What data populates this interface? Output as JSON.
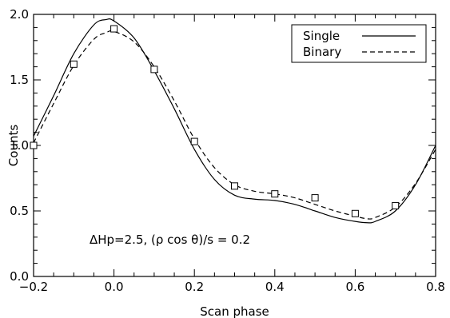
{
  "chart_data": {
    "type": "line",
    "title": "",
    "xlabel": "Scan phase",
    "ylabel": "Counts",
    "xlim": [
      -0.2,
      0.8
    ],
    "ylim": [
      0.0,
      2.0
    ],
    "xticks": [
      -0.2,
      0.0,
      0.2,
      0.4,
      0.6,
      0.8
    ],
    "xtick_labels": [
      "−0.2",
      "0.0",
      "0.2",
      "0.4",
      "0.6",
      "0.8"
    ],
    "yticks": [
      0.0,
      0.5,
      1.0,
      1.5,
      2.0
    ],
    "ytick_labels": [
      "0.0",
      "0.5",
      "1.0",
      "1.5",
      "2.0"
    ],
    "grid": false,
    "legend_position": "top-right",
    "series": [
      {
        "name": "Single",
        "style": "solid",
        "x": [
          -0.2,
          -0.15,
          -0.1,
          -0.05,
          -0.02,
          0.0,
          0.05,
          0.1,
          0.15,
          0.2,
          0.25,
          0.3,
          0.35,
          0.4,
          0.45,
          0.5,
          0.55,
          0.6,
          0.63,
          0.65,
          0.7,
          0.75,
          0.8
        ],
        "y": [
          1.07,
          1.38,
          1.7,
          1.92,
          1.96,
          1.95,
          1.82,
          1.57,
          1.28,
          0.97,
          0.74,
          0.62,
          0.59,
          0.58,
          0.55,
          0.5,
          0.45,
          0.42,
          0.41,
          0.42,
          0.5,
          0.7,
          1.0
        ]
      },
      {
        "name": "Binary",
        "style": "dashed",
        "x": [
          -0.2,
          -0.15,
          -0.1,
          -0.05,
          -0.02,
          0.0,
          0.05,
          0.1,
          0.15,
          0.2,
          0.25,
          0.3,
          0.35,
          0.4,
          0.45,
          0.5,
          0.55,
          0.6,
          0.63,
          0.65,
          0.7,
          0.75,
          0.8
        ],
        "y": [
          1.02,
          1.32,
          1.61,
          1.81,
          1.86,
          1.87,
          1.79,
          1.6,
          1.34,
          1.05,
          0.83,
          0.7,
          0.65,
          0.63,
          0.6,
          0.55,
          0.5,
          0.46,
          0.44,
          0.45,
          0.53,
          0.71,
          0.97
        ]
      }
    ],
    "points": {
      "marker": "square",
      "x": [
        -0.2,
        -0.1,
        0.0,
        0.1,
        0.2,
        0.3,
        0.4,
        0.5,
        0.6,
        0.7
      ],
      "y": [
        1.0,
        1.62,
        1.89,
        1.58,
        1.03,
        0.69,
        0.63,
        0.6,
        0.48,
        0.54
      ]
    },
    "annotation": "ΔHp=2.5, (ρ cos θ)/s = 0.2"
  }
}
